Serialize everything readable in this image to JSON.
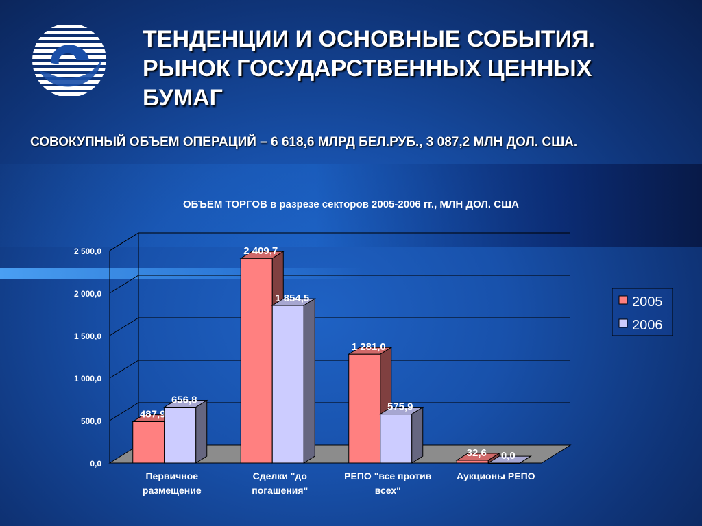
{
  "slide": {
    "title": "ТЕНДЕНЦИИ И ОСНОВНЫЕ СОБЫТИЯ. РЫНОК ГОСУДАРСТВЕННЫХ ЦЕННЫХ БУМАГ",
    "subtitle": "СОВОКУПНЫЙ ОБЪЕМ ОПЕРАЦИЙ – 6 618,6 МЛРД БЕЛ.РУБ., 3 087,2 МЛН ДОЛ. США.",
    "logo_icon": "globe-swirl-logo-icon"
  },
  "chart_data": {
    "type": "bar",
    "title": "ОБЪЕМ ТОРГОВ в разрезе секторов 2005-2006 гг., МЛН ДОЛ. США",
    "categories": [
      [
        "Первичное",
        "размещение"
      ],
      [
        "Сделки \"до",
        "погашения\""
      ],
      [
        "РЕПО \"все против",
        "всех\""
      ],
      [
        "Аукционы РЕПО"
      ]
    ],
    "series": [
      {
        "name": "2005",
        "values": [
          487.9,
          2409.7,
          1281.0,
          32.6
        ],
        "labels": [
          "487,9",
          "2 409,7",
          "1 281,0",
          "32,6"
        ]
      },
      {
        "name": "2006",
        "values": [
          656.8,
          1854.5,
          575.9,
          0.0
        ],
        "labels": [
          "656,8",
          "1 854,5",
          "575,9",
          "0,0"
        ]
      }
    ],
    "yticks": [
      0,
      500,
      1000,
      1500,
      2000,
      2500
    ],
    "ytick_labels": [
      "0,0",
      "500,0",
      "1 000,0",
      "1 500,0",
      "2 000,0",
      "2 500,0"
    ],
    "ylim": [
      0,
      2500
    ],
    "grid": true,
    "legend": "right",
    "style": "3d",
    "colors": {
      "2005": "#ff8080",
      "2006": "#ccccff",
      "grid": "#000000",
      "floor": "#8c8c8c"
    }
  }
}
